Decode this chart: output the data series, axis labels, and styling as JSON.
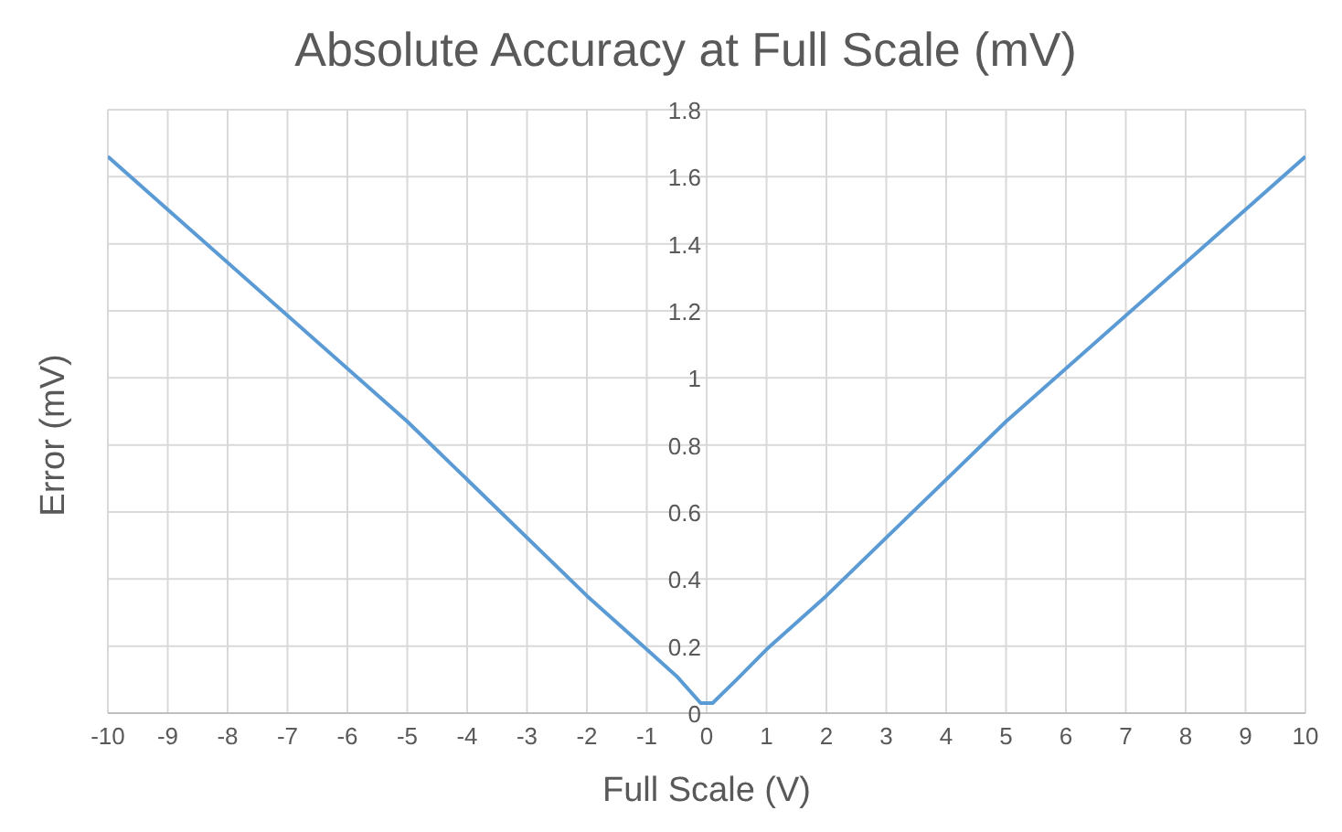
{
  "chart_data": {
    "type": "line",
    "title": "Absolute Accuracy at Full Scale (mV)",
    "xlabel": "Full Scale (V)",
    "ylabel": "Error (mV)",
    "x": [
      -10,
      -5,
      -2,
      -1,
      -0.5,
      -0.1,
      0.1,
      0.5,
      1,
      2,
      5,
      10
    ],
    "series": [
      {
        "color": "#5b9bd5",
        "values": [
          1.66,
          0.87,
          0.35,
          0.19,
          0.11,
          0.03,
          0.03,
          0.1,
          0.19,
          0.35,
          0.87,
          1.66
        ]
      }
    ],
    "xlim": [
      -10,
      10
    ],
    "xticks": [
      -10,
      -9,
      -8,
      -7,
      -6,
      -5,
      -4,
      -3,
      -2,
      -1,
      0,
      1,
      2,
      3,
      4,
      5,
      6,
      7,
      8,
      9,
      10
    ],
    "ylim": [
      0,
      1.8
    ],
    "yticks": [
      0,
      0.2,
      0.4,
      0.6,
      0.8,
      1,
      1.2,
      1.4,
      1.6,
      1.8
    ],
    "grid": true,
    "marker": "none",
    "line_style": "solid"
  }
}
